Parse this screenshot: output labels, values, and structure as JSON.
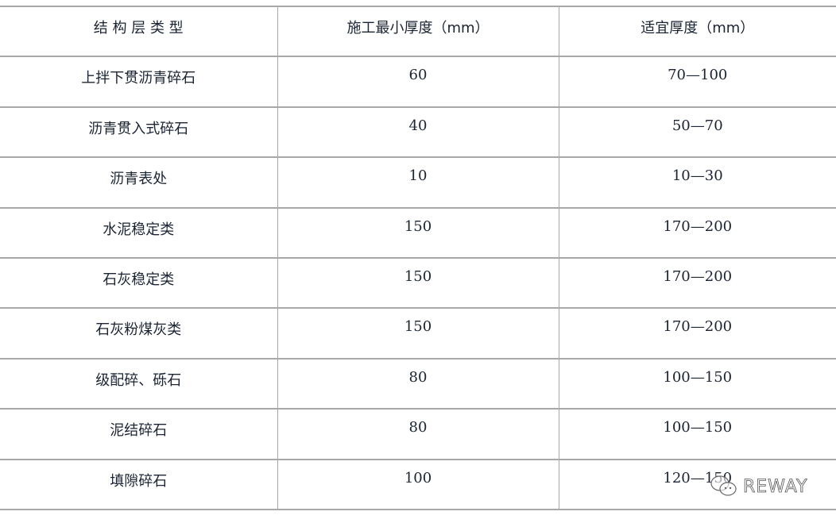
{
  "table": {
    "headers": [
      "结 构 层 类 型",
      "施工最小厚度（mm）",
      "适宜厚度（mm）"
    ],
    "rows": [
      [
        "上拌下贯沥青碎石",
        "60",
        "70—100"
      ],
      [
        "沥青贯入式碎石",
        "40",
        "50—70"
      ],
      [
        "沥青表处",
        "10",
        "10—30"
      ],
      [
        "水泥稳定类",
        "150",
        "170—200"
      ],
      [
        "石灰稳定类",
        "150",
        "170—200"
      ],
      [
        "石灰粉煤灰类",
        "150",
        "170—200"
      ],
      [
        "级配碎、砾石",
        "80",
        "100—150"
      ],
      [
        "泥结碎石",
        "80",
        "100—150"
      ],
      [
        "填隙碎石",
        "100",
        "120—150"
      ]
    ]
  },
  "watermark": {
    "text": "REWAY",
    "icon": "wechat-icon"
  }
}
